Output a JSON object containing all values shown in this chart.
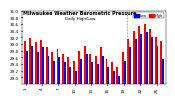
{
  "title": "Milwaukee Weather Barometric Pressure",
  "subtitle": "Daily High/Low",
  "bar_width": 0.35,
  "high_color": "#ff0000",
  "low_color": "#0000ff",
  "background_color": "#ffffff",
  "ylim": [
    28.8,
    31.0
  ],
  "yticks": [
    29.0,
    29.2,
    29.4,
    29.6,
    29.8,
    30.0,
    30.2,
    30.4,
    30.6,
    30.8,
    31.0
  ],
  "legend_high": "High",
  "legend_low": "Low",
  "dates": [
    "1",
    "2",
    "3",
    "4",
    "5",
    "6",
    "7",
    "8",
    "9",
    "10",
    "11",
    "12",
    "13",
    "14",
    "15",
    "16",
    "17",
    "18",
    "19",
    "20",
    "21",
    "22",
    "23",
    "24",
    "25",
    "26"
  ],
  "high_values": [
    30.1,
    30.18,
    30.05,
    30.12,
    29.9,
    29.75,
    29.85,
    29.7,
    29.6,
    29.5,
    29.8,
    29.95,
    29.7,
    29.65,
    29.9,
    29.55,
    29.45,
    29.3,
    29.75,
    30.15,
    30.4,
    30.55,
    30.6,
    30.45,
    30.2,
    30.1
  ],
  "low_values": [
    29.8,
    29.95,
    29.75,
    29.9,
    29.65,
    29.5,
    29.6,
    29.45,
    29.3,
    29.2,
    29.55,
    29.7,
    29.45,
    29.4,
    29.65,
    29.3,
    29.2,
    29.05,
    29.5,
    29.9,
    30.15,
    30.3,
    30.35,
    30.2,
    29.95,
    29.55
  ]
}
